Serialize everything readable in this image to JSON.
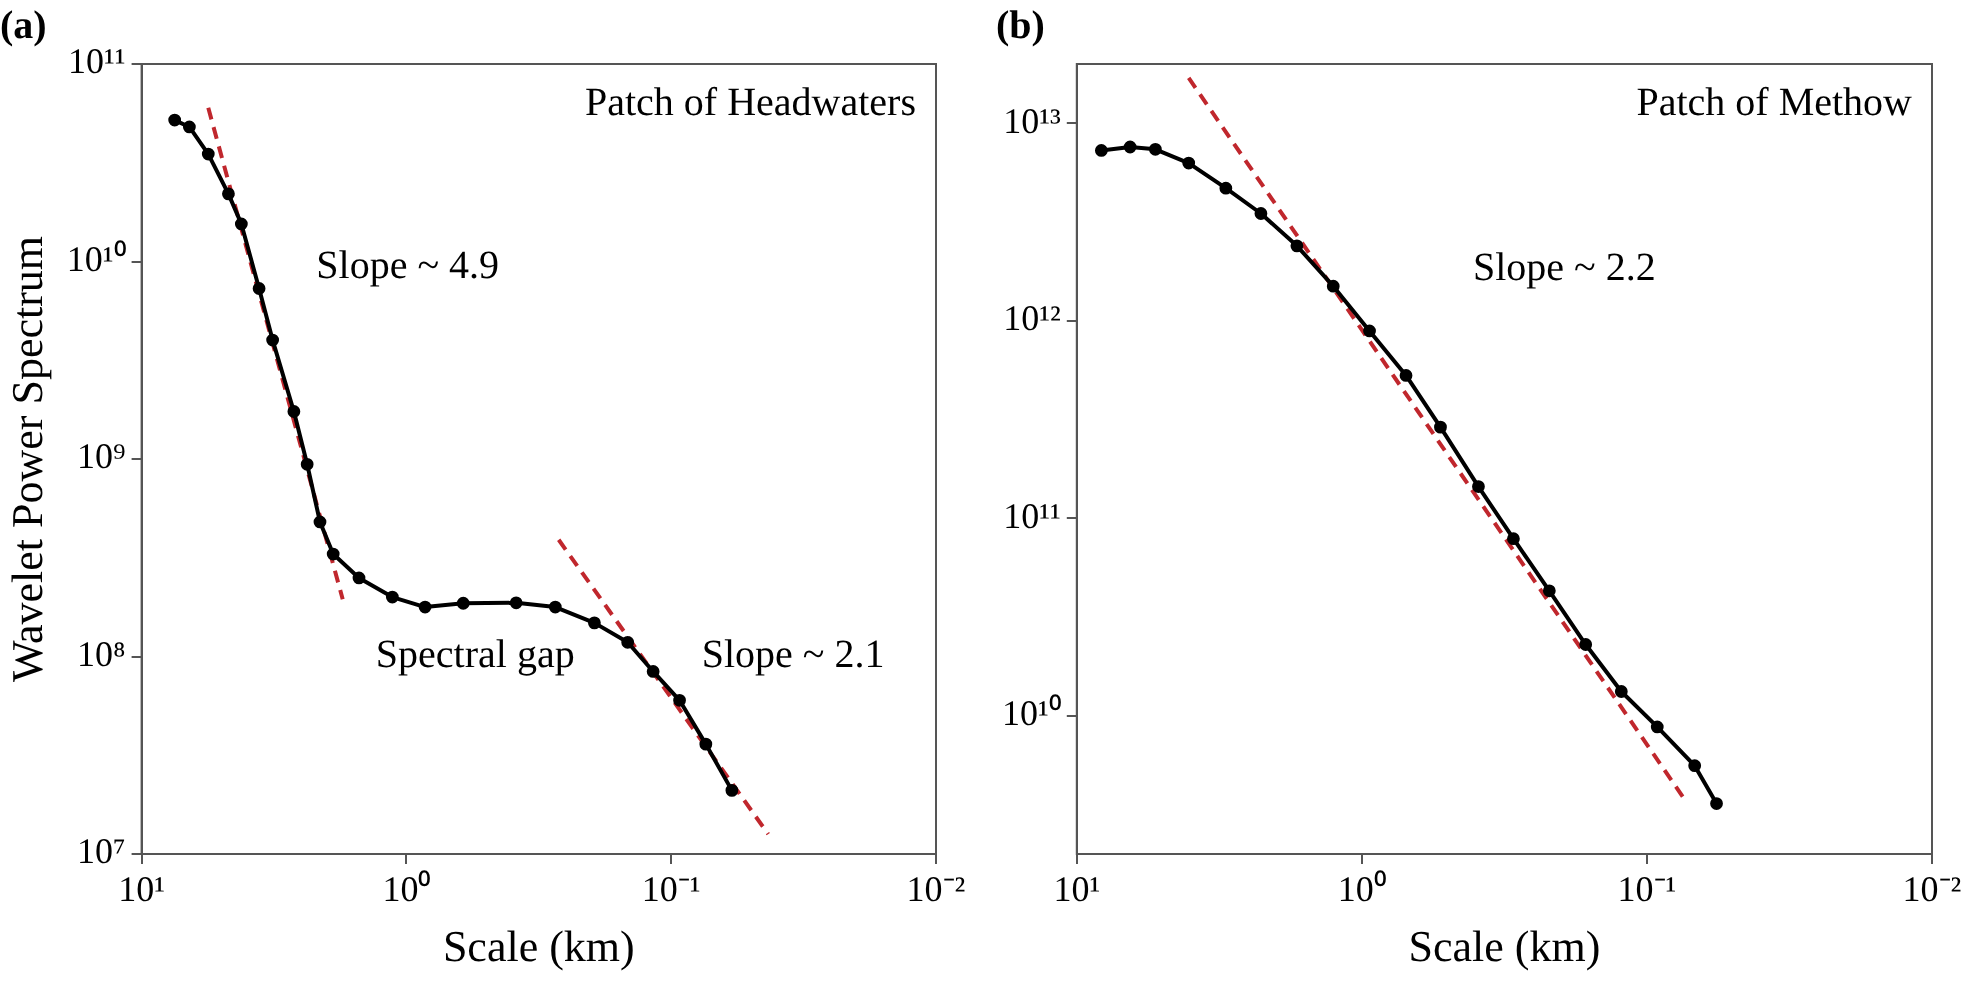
{
  "chart_data": [
    {
      "type": "line",
      "title": "(a)",
      "xlabel": "Scale (km)",
      "ylabel": "Wavelet Power Spectrum",
      "log": "xy",
      "xlim": [
        10,
        0.01
      ],
      "ylim": [
        10000000.0,
        100000000000.0
      ],
      "xticks": [
        {
          "value": 10,
          "label": "10¹"
        },
        {
          "value": 1,
          "label": "10⁰"
        },
        {
          "value": 0.1,
          "label": "10⁻¹"
        },
        {
          "value": 0.01,
          "label": "10⁻²"
        }
      ],
      "yticks": [
        {
          "value": 10000000.0,
          "label": "10⁷"
        },
        {
          "value": 100000000.0,
          "label": "10⁸"
        },
        {
          "value": 1000000000.0,
          "label": "10⁹"
        },
        {
          "value": 10000000000.0,
          "label": "10¹⁰"
        },
        {
          "value": 100000000000.0,
          "label": "10¹¹"
        }
      ],
      "series": [
        {
          "color": "#000000",
          "marker": "circle",
          "line_style": "solid",
          "x": [
            7.5,
            6.6,
            5.6,
            4.7,
            4.2,
            3.6,
            3.2,
            2.66,
            2.37,
            2.12,
            1.89,
            1.51,
            1.13,
            0.85,
            0.61,
            0.385,
            0.274,
            0.195,
            0.146,
            0.117,
            0.093,
            0.074,
            0.059
          ],
          "values": [
            52000000000.0,
            48000000000.0,
            35000000000.0,
            22000000000.0,
            15500000000.0,
            7300000000.0,
            4000000000.0,
            1740000000.0,
            940000000.0,
            480000000.0,
            330000000.0,
            250000000.0,
            200000000.0,
            178000000.0,
            186000000.0,
            187000000.0,
            178000000.0,
            148000000.0,
            118000000.0,
            84000000.0,
            60000000.0,
            36000000.0,
            21000000.0
          ]
        },
        {
          "type": "line",
          "color": "#c0272d",
          "marker": "none",
          "line_style": "dashed",
          "x": [
            5.6,
            1.74
          ],
          "values": [
            60000000000.0,
            195000000.0
          ]
        },
        {
          "type": "line",
          "color": "#c0272d",
          "marker": "none",
          "line_style": "dashed",
          "x": [
            0.266,
            0.043
          ],
          "values": [
            390000000.0,
            12600000.0
          ]
        }
      ],
      "annotations": [
        "Patch of Headwaters",
        "Slope ~ 4.9",
        "Spectral gap",
        "Slope ~ 2.1"
      ]
    },
    {
      "type": "line",
      "title": "(b)",
      "xlabel": "Scale (km)",
      "log": "xy",
      "xlim": [
        10,
        0.01
      ],
      "ylim": [
        2000000000.0,
        20000000000000.0
      ],
      "xticks": [
        {
          "value": 10,
          "label": "10¹"
        },
        {
          "value": 1,
          "label": "10⁰"
        },
        {
          "value": 0.1,
          "label": "10⁻¹"
        },
        {
          "value": 0.01,
          "label": "10⁻²"
        }
      ],
      "yticks": [
        {
          "value": 10000000000.0,
          "label": "10¹⁰"
        },
        {
          "value": 100000000000.0,
          "label": "10¹¹"
        },
        {
          "value": 1000000000000.0,
          "label": "10¹²"
        },
        {
          "value": 10000000000000.0,
          "label": "10¹³"
        }
      ],
      "series": [
        {
          "color": "#000000",
          "marker": "circle",
          "line_style": "solid",
          "x": [
            8.2,
            6.5,
            5.3,
            4.05,
            3.0,
            2.26,
            1.69,
            1.26,
            0.94,
            0.7,
            0.53,
            0.39,
            0.294,
            0.22,
            0.164,
            0.123,
            0.092,
            0.068,
            0.057
          ],
          "values": [
            7300000000000.0,
            7600000000000.0,
            7400000000000.0,
            6300000000000.0,
            4700000000000.0,
            3500000000000.0,
            2400000000000.0,
            1500000000000.0,
            890000000000.0,
            530000000000.0,
            290000000000.0,
            145000000000.0,
            79000000000.0,
            43000000000.0,
            23000000000.0,
            13300000000.0,
            8800000000.0,
            5600000000.0,
            3600000000.0
          ]
        },
        {
          "type": "line",
          "color": "#c0272d",
          "marker": "none",
          "line_style": "dashed",
          "x": [
            4.05,
            0.073
          ],
          "values": [
            17000000000000.0,
            3700000000.0
          ]
        }
      ],
      "annotations": [
        "Patch of Methow",
        "Slope ~ 2.2"
      ]
    }
  ]
}
